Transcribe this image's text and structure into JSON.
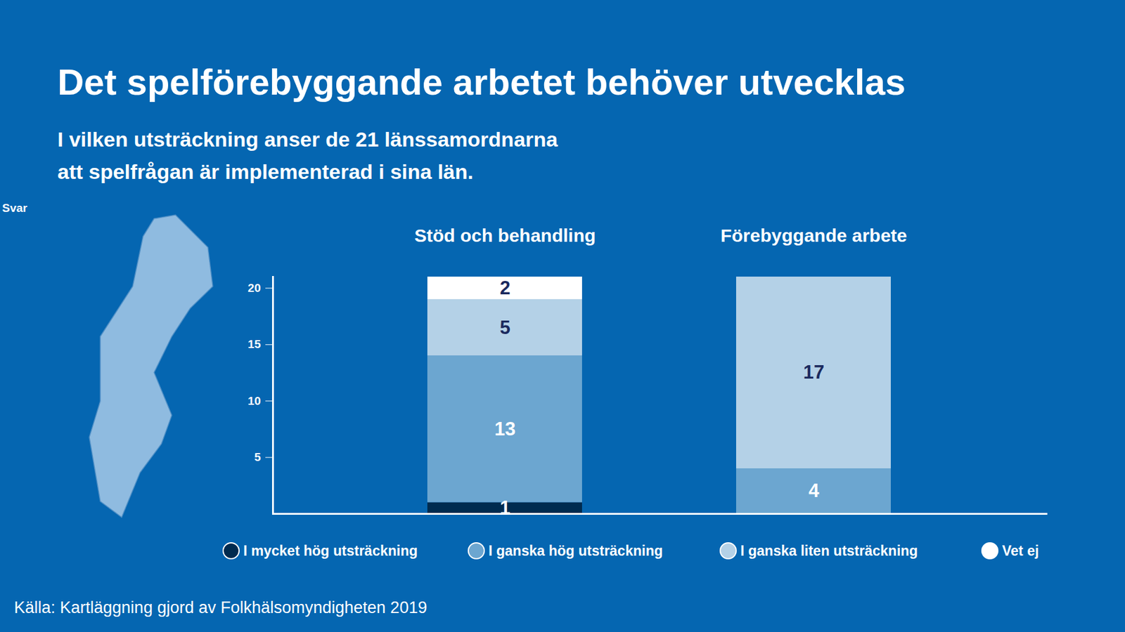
{
  "chart_data": {
    "type": "bar",
    "stacked": true,
    "data_labels": true,
    "title": "Det spelförebyggande arbetet behöver utvecklas",
    "subtitle": [
      "I vilken utsträckning anser de 21 länssamordnarna",
      "att spelfrågan är implementerad i sina län."
    ],
    "y_label": "Svar",
    "caption": "Källa: Kartläggning gjord av Folkhälsomyndigheten 2019",
    "categories": [
      "Stöd och behandling",
      "Förebyggande arbete"
    ],
    "series": [
      {
        "name": "I mycket hög utsträckning",
        "color": "#002b4f",
        "values": [
          1,
          null
        ]
      },
      {
        "name": "I ganska hög utsträckning",
        "color": "#6ca6d0",
        "values": [
          13,
          4
        ]
      },
      {
        "name": "I ganska liten utsträckning",
        "color": "#b4d1e7",
        "values": [
          5,
          17
        ]
      },
      {
        "name": "Vet ej",
        "color": "#ffffff",
        "values": [
          2,
          null
        ]
      }
    ],
    "ylim": [
      0,
      21
    ],
    "yticks": [
      5,
      10,
      15,
      20
    ],
    "legend": "bottom"
  }
}
